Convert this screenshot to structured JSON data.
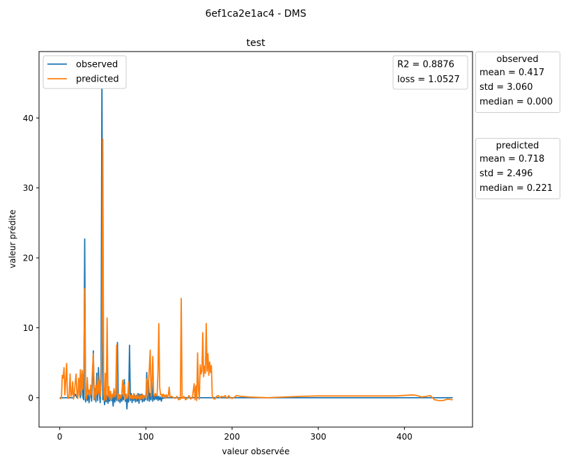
{
  "chart_data": {
    "type": "line",
    "suptitle": "6ef1ca2e1ac4 - DMS",
    "title": "test",
    "xlabel": "valeur observée",
    "ylabel": "valeur prédite",
    "xlim": [
      -24,
      479
    ],
    "ylim": [
      -4.2,
      49.5
    ],
    "xticks": [
      0,
      100,
      200,
      300,
      400
    ],
    "yticks": [
      0,
      10,
      20,
      30,
      40
    ],
    "grid": false,
    "legend": "top-left",
    "metrics": [
      "R2 = 0.8876",
      "loss = 1.0527"
    ],
    "series": [
      {
        "name": "observed",
        "color": "#1f77b4",
        "points": [
          [
            0,
            0
          ],
          [
            4,
            0
          ],
          [
            8,
            0
          ],
          [
            12,
            0
          ],
          [
            16,
            0
          ],
          [
            18,
            0.5
          ],
          [
            20,
            0
          ],
          [
            22,
            1.5
          ],
          [
            24,
            0
          ],
          [
            26,
            3.5
          ],
          [
            27,
            0
          ],
          [
            28,
            -0.3
          ],
          [
            29,
            22.7
          ],
          [
            30,
            -0.6
          ],
          [
            31,
            0.3
          ],
          [
            32,
            -0.4
          ],
          [
            33,
            0.6
          ],
          [
            34,
            -0.7
          ],
          [
            35,
            0.4
          ],
          [
            36,
            1.0
          ],
          [
            37,
            -0.5
          ],
          [
            38,
            2.0
          ],
          [
            39,
            6.7
          ],
          [
            40,
            -0.3
          ],
          [
            41,
            1.3
          ],
          [
            42,
            -0.6
          ],
          [
            43,
            3.5
          ],
          [
            44,
            -0.4
          ],
          [
            45,
            4.3
          ],
          [
            46,
            0.5
          ],
          [
            47,
            -0.7
          ],
          [
            48,
            4.5
          ],
          [
            49,
            47.5
          ],
          [
            50,
            -0.3
          ],
          [
            51,
            1.0
          ],
          [
            52,
            -1.0
          ],
          [
            53,
            0.5
          ],
          [
            54,
            -0.6
          ],
          [
            55,
            0.3
          ],
          [
            56,
            -0.8
          ],
          [
            57,
            0.2
          ],
          [
            58,
            -0.5
          ],
          [
            59,
            0.6
          ],
          [
            60,
            -0.4
          ],
          [
            61,
            0.2
          ],
          [
            62,
            -1.2
          ],
          [
            63,
            0.3
          ],
          [
            64,
            -0.6
          ],
          [
            65,
            1.0
          ],
          [
            66,
            -0.4
          ],
          [
            67,
            7.9
          ],
          [
            68,
            -0.5
          ],
          [
            69,
            0.4
          ],
          [
            70,
            -0.7
          ],
          [
            71,
            0.3
          ],
          [
            72,
            -0.5
          ],
          [
            73,
            0.4
          ],
          [
            74,
            -0.3
          ],
          [
            75,
            2.6
          ],
          [
            76,
            -0.5
          ],
          [
            77,
            0.4
          ],
          [
            78,
            -1.6
          ],
          [
            79,
            0.5
          ],
          [
            80,
            -0.6
          ],
          [
            81,
            7.5
          ],
          [
            82,
            -0.4
          ],
          [
            83,
            0.6
          ],
          [
            84,
            -0.7
          ],
          [
            85,
            0.2
          ],
          [
            86,
            -0.4
          ],
          [
            87,
            0.4
          ],
          [
            88,
            -0.6
          ],
          [
            89,
            0.3
          ],
          [
            90,
            -0.5
          ],
          [
            91,
            0.6
          ],
          [
            92,
            -0.8
          ],
          [
            93,
            0.5
          ],
          [
            94,
            -0.3
          ],
          [
            95,
            0.5
          ],
          [
            96,
            -0.6
          ],
          [
            97,
            0.3
          ],
          [
            98,
            -0.5
          ],
          [
            99,
            0.2
          ],
          [
            100,
            -0.3
          ],
          [
            101,
            3.6
          ],
          [
            102,
            -0.4
          ],
          [
            103,
            2.5
          ],
          [
            104,
            -0.5
          ],
          [
            105,
            0.6
          ],
          [
            106,
            -0.3
          ],
          [
            107,
            2.2
          ],
          [
            108,
            -0.5
          ],
          [
            109,
            0.4
          ],
          [
            110,
            -0.3
          ],
          [
            111,
            0.5
          ],
          [
            112,
            -0.2
          ],
          [
            113,
            0.3
          ],
          [
            114,
            -0.4
          ],
          [
            115,
            0.2
          ],
          [
            116,
            -0.3
          ],
          [
            117,
            0.1
          ],
          [
            118,
            -0.5
          ],
          [
            119,
            0.2
          ],
          [
            120,
            -0.1
          ],
          [
            122,
            0
          ],
          [
            126,
            0
          ],
          [
            130,
            0
          ],
          [
            140,
            0
          ],
          [
            150,
            0
          ],
          [
            160,
            0
          ],
          [
            180,
            0
          ],
          [
            200,
            0
          ],
          [
            220,
            0
          ],
          [
            240,
            0
          ],
          [
            260,
            0
          ],
          [
            300,
            0
          ],
          [
            350,
            0
          ],
          [
            400,
            0
          ],
          [
            440,
            0
          ],
          [
            456,
            0
          ]
        ]
      },
      {
        "name": "predicted",
        "color": "#ff7f0e",
        "points": [
          [
            0,
            -0.1
          ],
          [
            1,
            -0.1
          ],
          [
            2,
            -0.1
          ],
          [
            3,
            3.2
          ],
          [
            4,
            2.8
          ],
          [
            5,
            4.3
          ],
          [
            6,
            0.4
          ],
          [
            7,
            2.5
          ],
          [
            8,
            4.9
          ],
          [
            9,
            0.3
          ],
          [
            10,
            -0.1
          ],
          [
            11,
            0.4
          ],
          [
            12,
            3.4
          ],
          [
            13,
            0.2
          ],
          [
            14,
            0.5
          ],
          [
            15,
            2.3
          ],
          [
            16,
            -0.2
          ],
          [
            17,
            0.7
          ],
          [
            18,
            2.1
          ],
          [
            19,
            3.4
          ],
          [
            20,
            0.5
          ],
          [
            21,
            -0.1
          ],
          [
            22,
            2.8
          ],
          [
            23,
            0.3
          ],
          [
            24,
            4.0
          ],
          [
            25,
            0.3
          ],
          [
            26,
            3.9
          ],
          [
            27,
            1.2
          ],
          [
            28,
            4.1
          ],
          [
            29,
            15.6
          ],
          [
            30,
            0.4
          ],
          [
            31,
            -0.2
          ],
          [
            32,
            2.9
          ],
          [
            33,
            0.5
          ],
          [
            34,
            1.1
          ],
          [
            35,
            0.2
          ],
          [
            36,
            1.8
          ],
          [
            37,
            0.4
          ],
          [
            38,
            4.0
          ],
          [
            39,
            6.3
          ],
          [
            40,
            0.8
          ],
          [
            41,
            -0.3
          ],
          [
            42,
            1.8
          ],
          [
            43,
            0.4
          ],
          [
            44,
            3.2
          ],
          [
            45,
            0.6
          ],
          [
            46,
            2.5
          ],
          [
            47,
            0.2
          ],
          [
            48,
            2.1
          ],
          [
            49,
            7.8
          ],
          [
            50,
            37.0
          ],
          [
            51,
            0.6
          ],
          [
            52,
            -0.4
          ],
          [
            53,
            3.5
          ],
          [
            54,
            -0.3
          ],
          [
            55,
            11.4
          ],
          [
            56,
            0.2
          ],
          [
            57,
            1.6
          ],
          [
            58,
            -0.2
          ],
          [
            59,
            0.9
          ],
          [
            60,
            -0.3
          ],
          [
            61,
            0.5
          ],
          [
            62,
            0.2
          ],
          [
            63,
            1.3
          ],
          [
            64,
            0.1
          ],
          [
            65,
            0.5
          ],
          [
            66,
            7.5
          ],
          [
            67,
            -0.2
          ],
          [
            68,
            0.5
          ],
          [
            69,
            -0.3
          ],
          [
            70,
            0.4
          ],
          [
            71,
            -0.1
          ],
          [
            72,
            0.5
          ],
          [
            73,
            2.5
          ],
          [
            74,
            0.2
          ],
          [
            75,
            1.8
          ],
          [
            76,
            -0.3
          ],
          [
            77,
            0.5
          ],
          [
            78,
            -0.1
          ],
          [
            79,
            0.2
          ],
          [
            80,
            2.3
          ],
          [
            81,
            -0.2
          ],
          [
            82,
            0.4
          ],
          [
            83,
            -0.1
          ],
          [
            84,
            0.3
          ],
          [
            85,
            -0.2
          ],
          [
            86,
            0.6
          ],
          [
            87,
            -0.1
          ],
          [
            88,
            0.2
          ],
          [
            89,
            -0.2
          ],
          [
            90,
            0.5
          ],
          [
            91,
            -0.1
          ],
          [
            92,
            0.2
          ],
          [
            93,
            -0.3
          ],
          [
            94,
            0.3
          ],
          [
            95,
            -0.1
          ],
          [
            96,
            0.5
          ],
          [
            97,
            -0.2
          ],
          [
            98,
            0.1
          ],
          [
            99,
            0.3
          ],
          [
            100,
            -0.1
          ],
          [
            101,
            2.7
          ],
          [
            102,
            0.2
          ],
          [
            103,
            2.1
          ],
          [
            104,
            4.2
          ],
          [
            105,
            6.8
          ],
          [
            106,
            0.2
          ],
          [
            107,
            2.3
          ],
          [
            108,
            5.9
          ],
          [
            109,
            0.5
          ],
          [
            110,
            0.2
          ],
          [
            111,
            0.6
          ],
          [
            112,
            0.3
          ],
          [
            113,
            0.4
          ],
          [
            114,
            3.5
          ],
          [
            115,
            10.6
          ],
          [
            116,
            1.5
          ],
          [
            117,
            0.4
          ],
          [
            118,
            0.5
          ],
          [
            119,
            0.1
          ],
          [
            120,
            0.5
          ],
          [
            121,
            0.2
          ],
          [
            122,
            0.4
          ],
          [
            123,
            -0.1
          ],
          [
            124,
            0.4
          ],
          [
            125,
            0.1
          ],
          [
            126,
            0.3
          ],
          [
            127,
            1.5
          ],
          [
            128,
            0.1
          ],
          [
            130,
            0.2
          ],
          [
            132,
            0
          ],
          [
            134,
            -0.1
          ],
          [
            136,
            0.2
          ],
          [
            138,
            -0.3
          ],
          [
            140,
            -0.2
          ],
          [
            141,
            14.2
          ],
          [
            142,
            0.1
          ],
          [
            143,
            -0.1
          ],
          [
            144,
            0.2
          ],
          [
            146,
            -0.3
          ],
          [
            148,
            -0.1
          ],
          [
            150,
            0.3
          ],
          [
            152,
            -0.2
          ],
          [
            154,
            0.1
          ],
          [
            156,
            2.0
          ],
          [
            157,
            -0.3
          ],
          [
            158,
            1.7
          ],
          [
            159,
            -0.4
          ],
          [
            160,
            6.4
          ],
          [
            161,
            1.1
          ],
          [
            162,
            -0.2
          ],
          [
            163,
            4.7
          ],
          [
            164,
            3.4
          ],
          [
            165,
            3.8
          ],
          [
            166,
            9.3
          ],
          [
            167,
            3.0
          ],
          [
            168,
            4.5
          ],
          [
            169,
            3.5
          ],
          [
            170,
            10.6
          ],
          [
            171,
            3.8
          ],
          [
            172,
            6.3
          ],
          [
            173,
            3.2
          ],
          [
            174,
            5.1
          ],
          [
            175,
            3.6
          ],
          [
            176,
            4.6
          ],
          [
            177,
            0.3
          ],
          [
            178,
            -0.1
          ],
          [
            180,
            -0.2
          ],
          [
            182,
            0.2
          ],
          [
            184,
            0.3
          ],
          [
            186,
            0.0
          ],
          [
            188,
            0.2
          ],
          [
            190,
            0.1
          ],
          [
            192,
            0.3
          ],
          [
            194,
            -0.1
          ],
          [
            196,
            0.3
          ],
          [
            198,
            0.0
          ],
          [
            200,
            -0.1
          ],
          [
            202,
            0.0
          ],
          [
            205,
            0.3
          ],
          [
            210,
            0.2
          ],
          [
            220,
            0.1
          ],
          [
            240,
            0.0
          ],
          [
            260,
            0.1
          ],
          [
            280,
            0.2
          ],
          [
            300,
            0.25
          ],
          [
            340,
            0.25
          ],
          [
            390,
            0.25
          ],
          [
            410,
            0.4
          ],
          [
            415,
            0.3
          ],
          [
            420,
            0.1
          ],
          [
            425,
            0.2
          ],
          [
            430,
            0.3
          ],
          [
            435,
            -0.3
          ],
          [
            440,
            -0.4
          ],
          [
            445,
            -0.4
          ],
          [
            450,
            -0.2
          ],
          [
            456,
            -0.3
          ]
        ]
      }
    ]
  },
  "stats": [
    {
      "title": "observed",
      "rows": [
        "mean = 0.417",
        "std = 3.060",
        "median = 0.000"
      ]
    },
    {
      "title": "predicted",
      "rows": [
        "mean = 0.718",
        "std = 2.496",
        "median = 0.221"
      ]
    }
  ]
}
